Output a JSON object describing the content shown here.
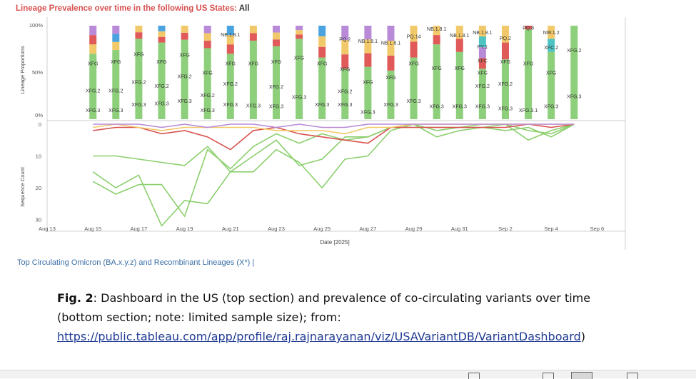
{
  "header": {
    "title_prefix": "Lineage Prevalence over time in the following US States:",
    "title_value": "All"
  },
  "chart_data": [
    {
      "type": "stacked-bar",
      "ylabel": "Lineage Proportions",
      "ytick_labels": [
        "100%",
        "50%",
        "0%"
      ],
      "series_colors": {
        "XFG": "#8dcf7a",
        "XFG.2": "#7cc56a",
        "XFG.3": "#92d27f",
        "NB.1.8.1": "#e05a5a",
        "PQ.2": "#f2c96a",
        "other_blue": "#4aa3df",
        "other_purple": "#b88ad8",
        "other_pink": "#e98bb5",
        "other_teal": "#4ec3c3"
      },
      "columns": [
        {
          "x": 15.0,
          "xfg": 0.7,
          "segs": [
            "#f2c96a",
            "#e05a5a",
            "#b88ad8"
          ],
          "labels": [
            [
              "XFG",
              0.6
            ],
            [
              "XFG.2",
              0.31
            ],
            [
              "XFG.3",
              0.1
            ]
          ]
        },
        {
          "x": 16.0,
          "xfg": 0.74,
          "segs": [
            "#f2c96a",
            "#4aa3df",
            "#b88ad8"
          ],
          "labels": [
            [
              "XFG",
              0.62
            ],
            [
              "XFG.2",
              0.31
            ],
            [
              "XFG.3",
              0.1
            ]
          ]
        },
        {
          "x": 17.0,
          "xfg": 0.86,
          "segs": [
            "#e05a5a",
            "#f2c96a"
          ],
          "labels": [
            [
              "XFG",
              0.7
            ],
            [
              "XFG.2",
              0.4
            ],
            [
              "XFG.3",
              0.16
            ]
          ]
        },
        {
          "x": 18.0,
          "xfg": 0.82,
          "segs": [
            "#e05a5a",
            "#f2c96a",
            "#4aa3df"
          ],
          "labels": [
            [
              "XFG",
              0.62
            ],
            [
              "XFG.2",
              0.36
            ],
            [
              "XFG.3",
              0.17
            ]
          ]
        },
        {
          "x": 19.0,
          "xfg": 0.85,
          "segs": [
            "#e05a5a",
            "#f2c96a"
          ],
          "labels": [
            [
              "XFG",
              0.69
            ],
            [
              "XFG.2",
              0.46
            ],
            [
              "XFG.3",
              0.2
            ]
          ]
        },
        {
          "x": 20.0,
          "xfg": 0.76,
          "segs": [
            "#e05a5a",
            "#f2c96a",
            "#b88ad8"
          ],
          "labels": [
            [
              "XFG",
              0.5
            ],
            [
              "XFG.2",
              0.26
            ],
            [
              "XFG.3",
              0.1
            ]
          ]
        },
        {
          "x": 21.0,
          "xfg": 0.7,
          "segs": [
            "#e05a5a",
            "#f2c96a",
            "#4aa3df"
          ],
          "labels": [
            [
              "NB.1.8.1",
              0.91
            ],
            [
              "XFG",
              0.6
            ],
            [
              "XFG.2",
              0.38
            ],
            [
              "XFG.3",
              0.16
            ]
          ]
        },
        {
          "x": 22.0,
          "xfg": 0.84,
          "segs": [
            "#e05a5a",
            "#f2c96a"
          ],
          "labels": [
            [
              "XFG",
              0.6
            ],
            [
              "XFG.3",
              0.15
            ]
          ]
        },
        {
          "x": 23.0,
          "xfg": 0.78,
          "segs": [
            "#e05a5a",
            "#f2c96a",
            "#b88ad8"
          ],
          "labels": [
            [
              "XFG",
              0.62
            ],
            [
              "XFG.2",
              0.35
            ],
            [
              "XFG.3",
              0.14
            ]
          ]
        },
        {
          "x": 24.0,
          "xfg": 0.86,
          "segs": [
            "#e05a5a",
            "#f2c96a",
            "#b88ad8"
          ],
          "labels": [
            [
              "XFG",
              0.66
            ],
            [
              "XFG.3",
              0.24
            ]
          ]
        },
        {
          "x": 25.0,
          "xfg": 0.66,
          "segs": [
            "#e05a5a",
            "#f2c96a",
            "#4aa3df"
          ],
          "labels": [
            [
              "XFG",
              0.6
            ],
            [
              "XFG.3",
              0.16
            ]
          ]
        },
        {
          "x": 26.0,
          "xfg": 0.54,
          "segs": [
            "#e05a5a",
            "#f2c96a",
            "#b88ad8"
          ],
          "labels": [
            [
              "PQ.2",
              0.86
            ],
            [
              "XFG",
              0.54
            ],
            [
              "XFG.2",
              0.3
            ],
            [
              "XFG.3",
              0.16
            ]
          ]
        },
        {
          "x": 27.0,
          "xfg": 0.56,
          "segs": [
            "#e05a5a",
            "#f2c96a",
            "#b88ad8"
          ],
          "labels": [
            [
              "NB.1.8.1",
              0.84
            ],
            [
              "XFG",
              0.4
            ],
            [
              "XFG.3",
              0.08
            ]
          ]
        },
        {
          "x": 28.0,
          "xfg": 0.52,
          "segs": [
            "#e05a5a",
            "#f2c96a",
            "#b88ad8"
          ],
          "labels": [
            [
              "NB.1.8.1",
              0.82
            ],
            [
              "XFG",
              0.45
            ],
            [
              "XFG.3",
              0.16
            ]
          ]
        },
        {
          "x": 29.0,
          "xfg": 0.66,
          "segs": [
            "#e05a5a",
            "#f2c96a"
          ],
          "labels": [
            [
              "PQ.14",
              0.89
            ],
            [
              "XFG",
              0.6
            ],
            [
              "XFG.3",
              0.2
            ]
          ]
        },
        {
          "x": 30.0,
          "xfg": 0.8,
          "segs": [
            "#e05a5a",
            "#f2c96a"
          ],
          "labels": [
            [
              "NB.1.8.1",
              0.97
            ],
            [
              "XFG",
              0.55
            ],
            [
              "XFG.3",
              0.14
            ]
          ]
        },
        {
          "x": 31.0,
          "xfg": 0.72,
          "segs": [
            "#e05a5a",
            "#f2c96a"
          ],
          "labels": [
            [
              "NB.1.8.1",
              0.9
            ],
            [
              "XFG",
              0.55
            ],
            [
              "XFG.3",
              0.14
            ]
          ]
        },
        {
          "x": 32.0,
          "xfg": 0.54,
          "segs": [
            "#e05a5a",
            "#b88ad8",
            "#4ec3c3",
            "#f2c96a"
          ],
          "labels": [
            [
              "NB.1.8.1",
              0.93
            ],
            [
              "PY.1",
              0.78
            ],
            [
              "XFC",
              0.63
            ],
            [
              "XFG",
              0.5
            ],
            [
              "XFG.2",
              0.36
            ],
            [
              "XFG.3",
              0.14
            ]
          ]
        },
        {
          "x": 33.0,
          "xfg": 0.64,
          "segs": [
            "#e05a5a",
            "#f2c96a"
          ],
          "labels": [
            [
              "PQ.2",
              0.87
            ],
            [
              "XFG",
              0.62
            ],
            [
              "XFG.2",
              0.38
            ],
            [
              "XFG.3",
              0.12
            ]
          ]
        },
        {
          "x": 34.0,
          "xfg": 0.96,
          "segs": [
            "#e05a5a"
          ],
          "labels": [
            [
              "PQ.8",
              0.98
            ],
            [
              "XFG",
              0.6
            ],
            [
              "XFG.3.1",
              0.1
            ]
          ]
        },
        {
          "x": 35.0,
          "xfg": 0.72,
          "segs": [
            "#4ec3c3",
            "#f2c96a"
          ],
          "labels": [
            [
              "NW.1.2",
              0.93
            ],
            [
              "XFC.2",
              0.77
            ],
            [
              "XFG",
              0.5
            ],
            [
              "XFG.3",
              0.14
            ]
          ]
        },
        {
          "x": 36.0,
          "xfg": 1.0,
          "segs": [],
          "labels": [
            [
              "XFG.2",
              0.74
            ],
            [
              "XFG.3",
              0.25
            ]
          ]
        }
      ]
    },
    {
      "type": "line",
      "ylabel": "Sequence Count",
      "xlabel": "Date [2025]",
      "yticks": [
        0,
        10,
        20,
        30
      ],
      "ylim": [
        0,
        33
      ],
      "y_reversed": true,
      "xtick_labels": [
        "Aug 13",
        "Aug 15",
        "Aug 17",
        "Aug 19",
        "Aug 21",
        "Aug 23",
        "Aug 25",
        "Aug 27",
        "Aug 29",
        "Aug 31",
        "Sep 2",
        "Sep 4",
        "Sep 6"
      ],
      "xticks": [
        13,
        15,
        17,
        19,
        21,
        23,
        25,
        27,
        29,
        31,
        33,
        35,
        37
      ],
      "xlim": [
        13,
        37.3
      ],
      "series": [
        {
          "color": "#8ccf6e",
          "x": [
            15,
            16,
            17,
            18,
            19,
            20,
            21,
            22,
            23,
            24,
            25,
            26,
            27,
            28,
            29,
            30,
            31,
            32,
            33,
            34,
            35,
            36
          ],
          "y": [
            10,
            10,
            11,
            12,
            13,
            7,
            15,
            10,
            5,
            13,
            11,
            4,
            4,
            1,
            0,
            4,
            2,
            1,
            0,
            5,
            2,
            0
          ]
        },
        {
          "color": "#8ccf6e",
          "x": [
            15,
            16,
            17,
            18,
            19,
            20,
            21,
            22,
            23,
            24,
            25,
            26,
            27,
            28,
            29,
            30,
            31,
            32,
            33,
            34,
            35,
            36
          ],
          "y": [
            15,
            20,
            16,
            32,
            24,
            25,
            15,
            15,
            8,
            12,
            20,
            11,
            10,
            2,
            0,
            2,
            1,
            0,
            0,
            2,
            3,
            0
          ]
        },
        {
          "color": "#8ccf6e",
          "x": [
            15,
            16,
            17,
            18,
            19,
            20,
            21,
            22,
            23,
            24,
            25,
            26,
            27,
            28,
            29,
            30,
            31,
            32,
            33,
            34,
            35,
            36
          ],
          "y": [
            18,
            22,
            19,
            19,
            29,
            8,
            14,
            7,
            3,
            6,
            3,
            5,
            4,
            1,
            1,
            1,
            1,
            1,
            2,
            1,
            4,
            0
          ]
        },
        {
          "color": "#d9534f",
          "x": [
            15,
            16,
            17,
            18,
            19,
            20,
            21,
            22,
            23,
            24,
            25,
            26,
            27,
            28,
            29,
            30,
            31,
            32,
            33,
            34,
            35,
            36
          ],
          "y": [
            2,
            1,
            1,
            3,
            2,
            4,
            8,
            2,
            1,
            3,
            4,
            5,
            6,
            1,
            1,
            1,
            1,
            1,
            1,
            0,
            1,
            0
          ]
        },
        {
          "color": "#f2c96a",
          "x": [
            15,
            16,
            17,
            18,
            19,
            20,
            21,
            22,
            23,
            24,
            25,
            26,
            27,
            28,
            29,
            30,
            31,
            32,
            33,
            34,
            35,
            36
          ],
          "y": [
            1,
            0,
            1,
            2,
            1,
            1,
            1,
            1,
            2,
            2,
            2,
            3,
            1,
            1,
            0,
            0,
            0,
            0,
            0,
            0,
            0,
            0
          ]
        },
        {
          "color": "#b88ad8",
          "x": [
            15,
            16,
            17,
            18,
            19,
            20,
            21,
            22,
            23,
            24,
            25,
            26,
            27,
            28,
            29,
            30,
            31,
            32,
            33,
            34,
            35,
            36
          ],
          "y": [
            0,
            0,
            0,
            1,
            0,
            1,
            0,
            0,
            1,
            0,
            1,
            1,
            0,
            0,
            0,
            0,
            0,
            0,
            0,
            0,
            0,
            0
          ]
        }
      ]
    }
  ],
  "footer": {
    "link_text": "Top Circulating Omicron (BA.x.y.z) and Recombinant Lineages (X*) |"
  },
  "caption": {
    "fig_label": "Fig. 2",
    "text": ": Dashboard in the US (top section) and prevalence of co-circulating variants over time (bottom section; note: limited sample size); from:",
    "url": "https://public.tableau.com/app/profile/raj.rajnarayanan/viz/USAVariantDB/VariantDashboard",
    "suffix": ")"
  }
}
